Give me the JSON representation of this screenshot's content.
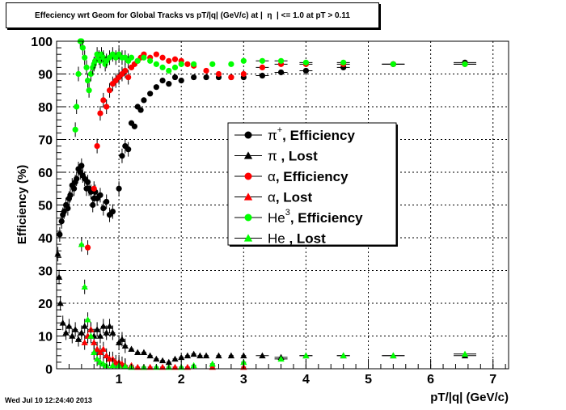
{
  "chart_data": {
    "type": "scatter",
    "title": "Effeciency wrt Geom for Global Tracks vs pT/|q| (GeV/c) at |  η  | <= 1.0 at pT > 0.11",
    "xlabel": "pT/|q| (GeV/c)",
    "ylabel": "Efficiency (%)",
    "xlim": [
      0,
      7.25
    ],
    "ylim": [
      0,
      100
    ],
    "x_ticks": [
      1,
      2,
      3,
      4,
      5,
      6,
      7
    ],
    "y_ticks": [
      0,
      10,
      20,
      30,
      40,
      50,
      60,
      70,
      80,
      90,
      100
    ],
    "grid": true,
    "legend_position": "center-right",
    "series": [
      {
        "name": "π+, Efficiency",
        "label_main": "π",
        "label_sup": "+",
        "label_rest": ", Efficiency",
        "color": "#000000",
        "marker": "circle",
        "points": [
          [
            0.05,
            41
          ],
          [
            0.08,
            45
          ],
          [
            0.1,
            47
          ],
          [
            0.12,
            48
          ],
          [
            0.15,
            50
          ],
          [
            0.18,
            49
          ],
          [
            0.2,
            52
          ],
          [
            0.22,
            53
          ],
          [
            0.25,
            56
          ],
          [
            0.28,
            55
          ],
          [
            0.3,
            57
          ],
          [
            0.32,
            58
          ],
          [
            0.35,
            61
          ],
          [
            0.38,
            60
          ],
          [
            0.4,
            62
          ],
          [
            0.42,
            59
          ],
          [
            0.45,
            58
          ],
          [
            0.48,
            55
          ],
          [
            0.5,
            57
          ],
          [
            0.52,
            55
          ],
          [
            0.55,
            54
          ],
          [
            0.58,
            50
          ],
          [
            0.6,
            52
          ],
          [
            0.62,
            54
          ],
          [
            0.65,
            52
          ],
          [
            0.7,
            53
          ],
          [
            0.75,
            49
          ],
          [
            0.8,
            51
          ],
          [
            0.85,
            47
          ],
          [
            0.9,
            48
          ],
          [
            1.0,
            55
          ],
          [
            1.05,
            65
          ],
          [
            1.1,
            68
          ],
          [
            1.15,
            67
          ],
          [
            1.2,
            75
          ],
          [
            1.25,
            74
          ],
          [
            1.3,
            80
          ],
          [
            1.35,
            79
          ],
          [
            1.4,
            82
          ],
          [
            1.5,
            84
          ],
          [
            1.6,
            86
          ],
          [
            1.7,
            88
          ],
          [
            1.8,
            87
          ],
          [
            1.9,
            89
          ],
          [
            2.0,
            88
          ],
          [
            2.2,
            89
          ],
          [
            2.4,
            89
          ],
          [
            2.6,
            89
          ],
          [
            2.8,
            89
          ],
          [
            3.0,
            89
          ],
          [
            3.3,
            89.5
          ],
          [
            3.6,
            90.5
          ],
          [
            4.0,
            91
          ],
          [
            4.6,
            92
          ],
          [
            5.4,
            93
          ],
          [
            6.55,
            93.5
          ]
        ]
      },
      {
        "name": "π , Lost",
        "label_main": "π",
        "label_sup": "",
        "label_rest": " , Lost",
        "color": "#000000",
        "marker": "triangle",
        "points": [
          [
            0.02,
            35
          ],
          [
            0.04,
            28
          ],
          [
            0.06,
            20
          ],
          [
            0.1,
            14
          ],
          [
            0.15,
            11
          ],
          [
            0.2,
            13
          ],
          [
            0.25,
            10
          ],
          [
            0.3,
            12
          ],
          [
            0.35,
            9
          ],
          [
            0.4,
            11
          ],
          [
            0.45,
            13
          ],
          [
            0.5,
            10
          ],
          [
            0.55,
            12
          ],
          [
            0.6,
            10
          ],
          [
            0.65,
            12
          ],
          [
            0.7,
            10
          ],
          [
            0.75,
            13
          ],
          [
            0.8,
            11
          ],
          [
            0.85,
            13
          ],
          [
            0.9,
            11
          ],
          [
            1.0,
            8
          ],
          [
            1.05,
            9
          ],
          [
            1.1,
            7
          ],
          [
            1.2,
            6
          ],
          [
            1.3,
            5
          ],
          [
            1.4,
            5
          ],
          [
            1.5,
            4
          ],
          [
            1.6,
            3
          ],
          [
            1.7,
            2.5
          ],
          [
            1.8,
            2
          ],
          [
            1.9,
            3
          ],
          [
            2.0,
            3.5
          ],
          [
            2.1,
            4
          ],
          [
            2.2,
            4.5
          ],
          [
            2.3,
            4
          ],
          [
            2.4,
            4
          ],
          [
            2.6,
            4
          ],
          [
            2.8,
            4
          ],
          [
            3.0,
            4
          ],
          [
            3.3,
            4
          ],
          [
            3.6,
            3.5
          ],
          [
            4.0,
            4
          ],
          [
            4.6,
            4
          ],
          [
            5.4,
            4
          ],
          [
            6.55,
            4
          ]
        ]
      },
      {
        "name": "α, Efficiency",
        "label_main": "α",
        "label_sup": "",
        "label_rest": ", Efficiency",
        "color": "#ff0000",
        "marker": "circle",
        "points": [
          [
            0.5,
            37
          ],
          [
            0.6,
            55
          ],
          [
            0.65,
            68
          ],
          [
            0.7,
            78
          ],
          [
            0.75,
            82
          ],
          [
            0.8,
            80
          ],
          [
            0.85,
            85
          ],
          [
            0.9,
            87
          ],
          [
            0.95,
            88
          ],
          [
            1.0,
            89
          ],
          [
            1.05,
            90
          ],
          [
            1.1,
            91
          ],
          [
            1.15,
            89
          ],
          [
            1.2,
            92
          ],
          [
            1.25,
            93
          ],
          [
            1.3,
            94
          ],
          [
            1.35,
            95
          ],
          [
            1.4,
            96
          ],
          [
            1.5,
            95
          ],
          [
            1.6,
            96
          ],
          [
            1.7,
            95
          ],
          [
            1.8,
            94
          ],
          [
            1.9,
            94.5
          ],
          [
            2.0,
            94
          ],
          [
            2.1,
            93
          ],
          [
            2.2,
            92.5
          ],
          [
            2.4,
            91
          ],
          [
            2.6,
            90
          ],
          [
            2.8,
            89
          ],
          [
            3.0,
            90
          ],
          [
            3.3,
            92
          ],
          [
            3.6,
            93
          ],
          [
            4.0,
            93
          ],
          [
            4.6,
            93
          ],
          [
            5.4,
            93
          ],
          [
            6.55,
            93
          ]
        ]
      },
      {
        "name": "α, Lost",
        "label_main": "α",
        "label_sup": "",
        "label_rest": ", Lost",
        "color": "#ff0000",
        "marker": "triangle",
        "points": [
          [
            0.45,
            8
          ],
          [
            0.5,
            10
          ],
          [
            0.55,
            12
          ],
          [
            0.6,
            8
          ],
          [
            0.65,
            6
          ],
          [
            0.7,
            5
          ],
          [
            0.75,
            6
          ],
          [
            0.8,
            4
          ],
          [
            0.85,
            3
          ],
          [
            0.9,
            3
          ],
          [
            0.95,
            2
          ],
          [
            1.0,
            2
          ],
          [
            1.05,
            1.5
          ],
          [
            1.1,
            1
          ],
          [
            1.2,
            1
          ],
          [
            1.3,
            0.5
          ],
          [
            1.4,
            0.5
          ],
          [
            1.5,
            0.5
          ],
          [
            1.7,
            0.5
          ],
          [
            1.9,
            0.5
          ],
          [
            2.1,
            0.5
          ],
          [
            2.5,
            0.5
          ],
          [
            3.0,
            0.5
          ]
        ]
      },
      {
        "name": "He3, Efficiency",
        "label_main": "He",
        "label_sup": "3",
        "label_rest": ", Efficiency",
        "color": "#00ff00",
        "marker": "circle",
        "points": [
          [
            0.3,
            73
          ],
          [
            0.32,
            80
          ],
          [
            0.35,
            90
          ],
          [
            0.38,
            100
          ],
          [
            0.4,
            100
          ],
          [
            0.42,
            98
          ],
          [
            0.45,
            95
          ],
          [
            0.48,
            92
          ],
          [
            0.5,
            88
          ],
          [
            0.52,
            85
          ],
          [
            0.55,
            90
          ],
          [
            0.58,
            92
          ],
          [
            0.6,
            93
          ],
          [
            0.62,
            94
          ],
          [
            0.65,
            96
          ],
          [
            0.68,
            95
          ],
          [
            0.7,
            94
          ],
          [
            0.72,
            96
          ],
          [
            0.75,
            95
          ],
          [
            0.78,
            93
          ],
          [
            0.8,
            94
          ],
          [
            0.85,
            95
          ],
          [
            0.9,
            96
          ],
          [
            0.95,
            95
          ],
          [
            1.0,
            96
          ],
          [
            1.05,
            95
          ],
          [
            1.1,
            95
          ],
          [
            1.15,
            94
          ],
          [
            1.2,
            95
          ],
          [
            1.3,
            94
          ],
          [
            1.4,
            95
          ],
          [
            1.5,
            94
          ],
          [
            1.6,
            93
          ],
          [
            1.7,
            92
          ],
          [
            1.8,
            91
          ],
          [
            1.9,
            92
          ],
          [
            2.0,
            93
          ],
          [
            2.2,
            93
          ],
          [
            2.5,
            93
          ],
          [
            2.8,
            93
          ],
          [
            3.0,
            94
          ],
          [
            3.3,
            94
          ],
          [
            3.6,
            94
          ],
          [
            4.0,
            93.5
          ],
          [
            4.6,
            93.5
          ],
          [
            5.4,
            93
          ],
          [
            6.55,
            93
          ]
        ]
      },
      {
        "name": "He , Lost",
        "label_main": "He",
        "label_sup": "",
        "label_rest": " , Lost",
        "color": "#00ff00",
        "marker": "triangle",
        "points": [
          [
            0.4,
            38
          ],
          [
            0.45,
            25
          ],
          [
            0.5,
            15
          ],
          [
            0.55,
            10
          ],
          [
            0.6,
            5
          ],
          [
            0.65,
            3
          ],
          [
            0.7,
            2
          ],
          [
            0.75,
            1.5
          ],
          [
            0.8,
            1
          ],
          [
            0.9,
            1
          ],
          [
            1.0,
            1
          ],
          [
            1.1,
            0.8
          ],
          [
            1.2,
            0.5
          ],
          [
            1.4,
            0.5
          ],
          [
            1.6,
            0.5
          ],
          [
            1.8,
            0.5
          ],
          [
            2.0,
            0.5
          ],
          [
            2.2,
            1
          ],
          [
            2.5,
            1.5
          ],
          [
            3.0,
            2
          ],
          [
            3.6,
            3
          ],
          [
            4.0,
            4
          ],
          [
            4.6,
            4
          ],
          [
            5.4,
            4
          ],
          [
            6.55,
            4.5
          ]
        ]
      }
    ]
  },
  "footer": {
    "timestamp": "Wed Jul 10 12:24:40 2013"
  }
}
